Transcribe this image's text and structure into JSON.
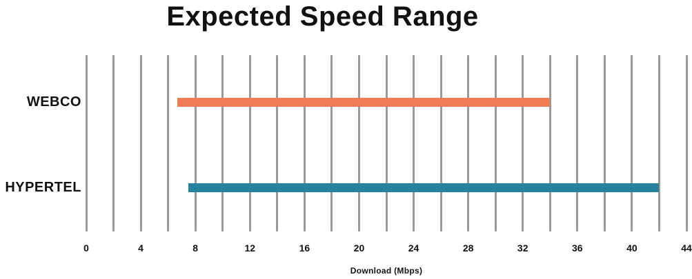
{
  "title": "Expected Speed Range",
  "chart_data": {
    "type": "bar",
    "orientation": "horizontal",
    "title": "Expected Speed Range",
    "xlabel": "Download (Mbps)",
    "xlim": [
      0,
      44
    ],
    "x_ticks": [
      0,
      4,
      8,
      12,
      16,
      20,
      24,
      28,
      32,
      36,
      40,
      44
    ],
    "gridline_step": 2,
    "grid_on": true,
    "legend": "none",
    "categories": [
      "WEBCO",
      "HYPERTEL"
    ],
    "series": [
      {
        "name": "WEBCO",
        "range_mbps": [
          6.7,
          34
        ],
        "color": "#F07C55"
      },
      {
        "name": "HYPERTEL",
        "range_mbps": [
          7.5,
          42
        ],
        "color": "#26829E"
      }
    ],
    "colors": {
      "gridline": "#9D9993",
      "text": "#111111",
      "background": "#FFFFFF"
    }
  }
}
